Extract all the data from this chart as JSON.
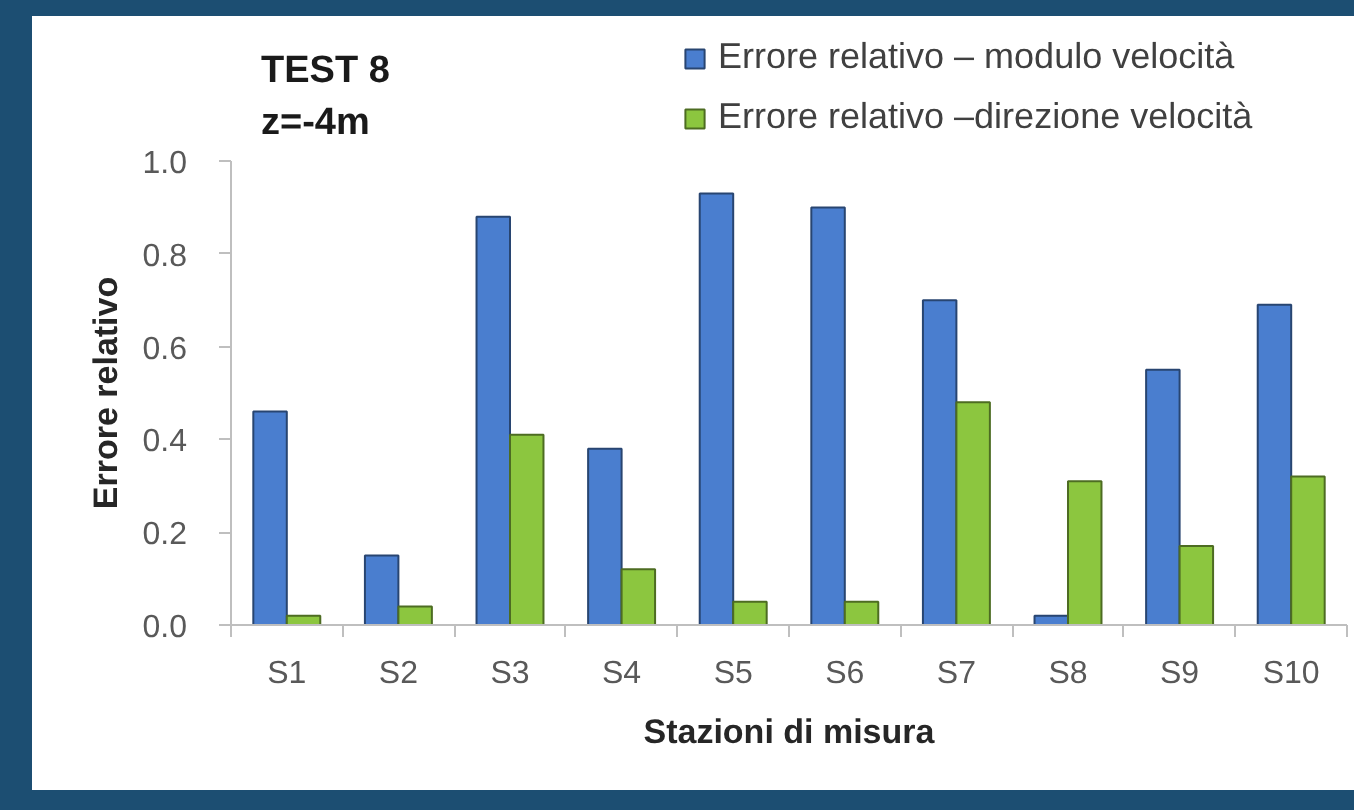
{
  "chart_data": {
    "type": "bar",
    "title": "TEST 8",
    "subtitle": "z=-4m",
    "xlabel": "Stazioni di misura",
    "ylabel": "Errore relativo",
    "categories": [
      "S1",
      "S2",
      "S3",
      "S4",
      "S5",
      "S6",
      "S7",
      "S8",
      "S9",
      "S10"
    ],
    "series": [
      {
        "name": "Errore relativo – modulo velocità",
        "color": "#4a7ecf",
        "values": [
          0.46,
          0.15,
          0.88,
          0.38,
          0.93,
          0.9,
          0.7,
          0.02,
          0.55,
          0.69
        ]
      },
      {
        "name": "Errore relativo –direzione velocità",
        "color": "#8cc63f",
        "values": [
          0.02,
          0.04,
          0.41,
          0.12,
          0.05,
          0.05,
          0.48,
          0.31,
          0.17,
          0.32
        ]
      }
    ],
    "ylim": [
      0,
      1.0
    ],
    "yticks": [
      {
        "value": 0,
        "label": "0.0"
      },
      0.2,
      0.4,
      0.6,
      0.8,
      {
        "value": 1,
        "label": "1.0"
      }
    ],
    "grid": false,
    "legend": "top right"
  }
}
